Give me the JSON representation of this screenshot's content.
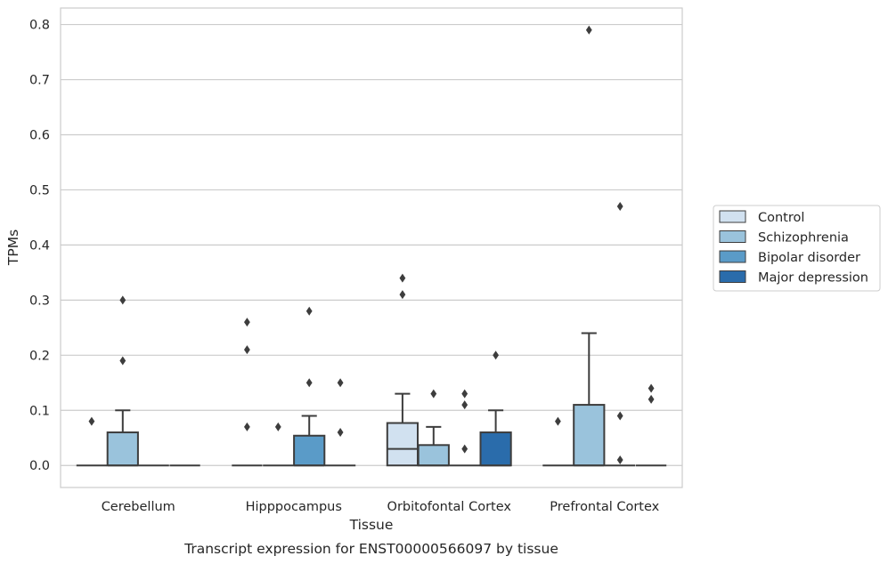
{
  "chart_data": {
    "type": "box",
    "xlabel": "Tissue",
    "ylabel": "TPMs",
    "caption": "Transcript expression for ENST00000566097 by tissue",
    "ylim": [
      -0.04,
      0.83
    ],
    "yticks": [
      0.0,
      0.1,
      0.2,
      0.3,
      0.4,
      0.5,
      0.6,
      0.7,
      0.8
    ],
    "ytick_labels": [
      "0.0",
      "0.1",
      "0.2",
      "0.3",
      "0.4",
      "0.5",
      "0.6",
      "0.7",
      "0.8"
    ],
    "grid": "horizontal",
    "legend_position": "right",
    "categories": [
      "Cerebellum",
      "Hipppocampus",
      "Orbitofontal Cortex",
      "Prefrontal Cortex"
    ],
    "series": [
      {
        "name": "Control",
        "color": "#d1e1f0",
        "boxes": [
          {
            "q1": 0,
            "median": 0,
            "q3": 0,
            "whislo": 0,
            "whishi": 0,
            "fliers": [
              0.08
            ]
          },
          {
            "q1": 0,
            "median": 0,
            "q3": 0,
            "whislo": 0,
            "whishi": 0,
            "fliers": [
              0.26,
              0.21,
              0.07
            ]
          },
          {
            "q1": 0,
            "median": 0.03,
            "q3": 0.077,
            "whislo": 0,
            "whishi": 0.13,
            "fliers": [
              0.34,
              0.31
            ]
          },
          {
            "q1": 0,
            "median": 0,
            "q3": 0,
            "whislo": 0,
            "whishi": 0,
            "fliers": [
              0.08
            ]
          }
        ]
      },
      {
        "name": "Schizophrenia",
        "color": "#9ac3dc",
        "boxes": [
          {
            "q1": 0,
            "median": 0,
            "q3": 0.06,
            "whislo": 0,
            "whishi": 0.1,
            "fliers": [
              0.3,
              0.19
            ]
          },
          {
            "q1": 0,
            "median": 0,
            "q3": 0,
            "whislo": 0,
            "whishi": 0,
            "fliers": [
              0.07
            ]
          },
          {
            "q1": 0,
            "median": 0,
            "q3": 0.037,
            "whislo": 0,
            "whishi": 0.07,
            "fliers": [
              0.13
            ]
          },
          {
            "q1": 0,
            "median": 0,
            "q3": 0.11,
            "whislo": 0,
            "whishi": 0.24,
            "fliers": [
              0.79
            ]
          }
        ]
      },
      {
        "name": "Bipolar disorder",
        "color": "#5a9bc8",
        "boxes": [
          {
            "q1": 0,
            "median": 0,
            "q3": 0,
            "whislo": 0,
            "whishi": 0,
            "fliers": []
          },
          {
            "q1": 0,
            "median": 0,
            "q3": 0.054,
            "whislo": 0,
            "whishi": 0.09,
            "fliers": [
              0.28,
              0.15
            ]
          },
          {
            "q1": 0,
            "median": 0,
            "q3": 0,
            "whislo": 0,
            "whishi": 0,
            "fliers": [
              0.13,
              0.11,
              0.03
            ]
          },
          {
            "q1": 0,
            "median": 0,
            "q3": 0,
            "whislo": 0,
            "whishi": 0,
            "fliers": [
              0.47,
              0.09,
              0.01
            ]
          }
        ]
      },
      {
        "name": "Major depression",
        "color": "#2a6cab",
        "boxes": [
          {
            "q1": 0,
            "median": 0,
            "q3": 0,
            "whislo": 0,
            "whishi": 0,
            "fliers": []
          },
          {
            "q1": 0,
            "median": 0,
            "q3": 0,
            "whislo": 0,
            "whishi": 0,
            "fliers": [
              0.15,
              0.06
            ]
          },
          {
            "q1": 0,
            "median": 0,
            "q3": 0.06,
            "whislo": 0,
            "whishi": 0.1,
            "fliers": [
              0.2
            ]
          },
          {
            "q1": 0,
            "median": 0,
            "q3": 0,
            "whislo": 0,
            "whishi": 0,
            "fliers": [
              0.14,
              0.12
            ]
          }
        ]
      }
    ]
  }
}
